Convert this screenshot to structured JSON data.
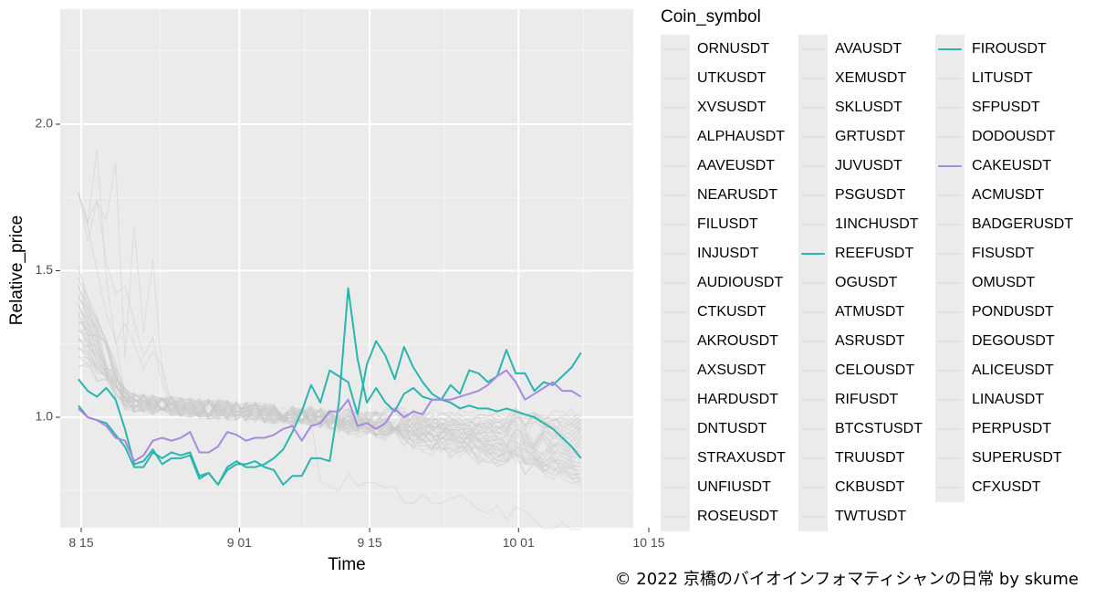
{
  "chart_data": {
    "type": "line",
    "xlabel": "Time",
    "ylabel": "Relative_price",
    "x_ticks": [
      "8 15",
      "9 01",
      "9 15",
      "10 01",
      "10 15"
    ],
    "y_ticks": [
      "1.0",
      "1.5",
      "2.0"
    ],
    "ylim": [
      0.65,
      2.4
    ],
    "grid": true,
    "legend_title": "Coin_symbol",
    "legend_placement": "right",
    "legend_columns": [
      [
        "ORNUSDT",
        "UTKUSDT",
        "XVSUSDT",
        "ALPHAUSDT",
        "AAVEUSDT",
        "NEARUSDT",
        "FILUSDT",
        "INJUSDT",
        "AUDIOUSDT",
        "CTKUSDT",
        "AKROUSDT",
        "AXSUSDT",
        "HARDUSDT",
        "DNTUSDT",
        "STRAXUSDT",
        "UNFIUSDT",
        "ROSEUSDT"
      ],
      [
        "AVAUSDT",
        "XEMUSDT",
        "SKLUSDT",
        "GRTUSDT",
        "JUVUSDT",
        "PSGUSDT",
        "1INCHUSDT",
        "REEFUSDT",
        "OGUSDT",
        "ATMUSDT",
        "ASRUSDT",
        "CELOUSDT",
        "RIFUSDT",
        "BTCSTUSDT",
        "TRUUSDT",
        "CKBUSDT",
        "TWTUSDT"
      ],
      [
        "FIROUSDT",
        "LITUSDT",
        "SFPUSDT",
        "DODOUSDT",
        "CAKEUSDT",
        "ACMUSDT",
        "BADGERUSDT",
        "FISUSDT",
        "OMUSDT",
        "PONDUSDT",
        "DEGOUSDT",
        "ALICEUSDT",
        "LINAUSDT",
        "PERPUSDT",
        "SUPERUSDT",
        "CFXUSDT"
      ]
    ],
    "colors": {
      "highlight_teal": "#2ab5ad",
      "highlight_purple": "#a889e0",
      "background_line": "#c9c9c9",
      "panel": "#ebebeb"
    },
    "series": [
      {
        "name": "FIROUSDT",
        "color": "#2ab5ad",
        "highlight": true,
        "x": [
          14.7,
          15.7,
          16.7,
          17.7,
          18.7,
          19.7,
          20.7,
          21.7,
          22.7,
          23.7,
          24.7,
          25.7,
          26.7,
          27.7,
          28.7,
          29.7,
          30.7,
          31.7,
          32.7,
          33.7,
          34.7,
          35.7,
          36.7,
          37.7,
          38.7,
          39.7,
          40.7,
          41.7,
          42.7,
          43.7,
          44.7,
          45.7,
          46.7,
          47.7,
          48.7,
          49.7,
          50.7,
          51.7,
          52.7,
          53.7,
          54.7,
          55.7,
          56.7,
          57.7,
          58.7,
          59.7,
          60.7,
          61.7,
          62.7,
          63.7,
          64.7,
          65.7,
          66.7,
          67.7,
          68.7
        ],
        "y": [
          1.13,
          1.09,
          1.07,
          1.1,
          1.06,
          0.96,
          0.84,
          0.85,
          0.89,
          0.84,
          0.86,
          0.86,
          0.87,
          0.79,
          0.81,
          0.77,
          0.83,
          0.85,
          0.83,
          0.83,
          0.84,
          0.86,
          0.89,
          0.95,
          1.02,
          1.11,
          1.05,
          1.16,
          1.14,
          1.12,
          1.01,
          1.18,
          1.26,
          1.21,
          1.13,
          1.24,
          1.17,
          1.12,
          1.08,
          1.06,
          1.11,
          1.08,
          1.16,
          1.15,
          1.12,
          1.14,
          1.23,
          1.15,
          1.15,
          1.09,
          1.12,
          1.11,
          1.14,
          1.17,
          1.22
        ]
      },
      {
        "name": "REEFUSDT",
        "color": "#2ab5ad",
        "highlight": true,
        "x": [
          14.7,
          15.7,
          16.7,
          17.7,
          18.7,
          19.7,
          20.7,
          21.7,
          22.7,
          23.7,
          24.7,
          25.7,
          26.7,
          27.7,
          28.7,
          29.7,
          30.7,
          31.7,
          32.7,
          33.7,
          34.7,
          35.7,
          36.7,
          37.7,
          38.7,
          39.7,
          40.7,
          41.7,
          42.7,
          43.7,
          44.7,
          45.7,
          46.7,
          47.7,
          48.7,
          49.7,
          50.7,
          51.7,
          52.7,
          53.7,
          54.7,
          55.7,
          56.7,
          57.7,
          58.7,
          59.7,
          60.7,
          61.7,
          62.7,
          63.7,
          64.7,
          65.7,
          66.7,
          67.7,
          68.7
        ],
        "y": [
          1.04,
          1.0,
          0.99,
          0.98,
          0.94,
          0.9,
          0.83,
          0.83,
          0.88,
          0.86,
          0.88,
          0.87,
          0.88,
          0.8,
          0.81,
          0.77,
          0.82,
          0.84,
          0.84,
          0.85,
          0.83,
          0.82,
          0.77,
          0.8,
          0.8,
          0.86,
          0.86,
          0.85,
          1.05,
          1.44,
          1.2,
          1.05,
          1.1,
          1.05,
          1.02,
          1.08,
          1.1,
          1.07,
          1.06,
          1.06,
          1.05,
          1.03,
          1.04,
          1.03,
          1.03,
          1.02,
          1.03,
          1.02,
          1.01,
          1.0,
          0.98,
          0.96,
          0.93,
          0.9,
          0.86
        ]
      },
      {
        "name": "CAKEUSDT",
        "color": "#a889e0",
        "highlight": true,
        "x": [
          14.7,
          15.7,
          16.7,
          17.7,
          18.7,
          19.7,
          20.7,
          21.7,
          22.7,
          23.7,
          24.7,
          25.7,
          26.7,
          27.7,
          28.7,
          29.7,
          30.7,
          31.7,
          32.7,
          33.7,
          34.7,
          35.7,
          36.7,
          37.7,
          38.7,
          39.7,
          40.7,
          41.7,
          42.7,
          43.7,
          44.7,
          45.7,
          46.7,
          47.7,
          48.7,
          49.7,
          50.7,
          51.7,
          52.7,
          53.7,
          54.7,
          55.7,
          56.7,
          57.7,
          58.7,
          59.7,
          60.7,
          61.7,
          62.7,
          63.7,
          64.7,
          65.7,
          66.7,
          67.7,
          68.7
        ],
        "y": [
          1.03,
          1.0,
          0.99,
          0.97,
          0.93,
          0.92,
          0.85,
          0.87,
          0.92,
          0.93,
          0.92,
          0.93,
          0.95,
          0.88,
          0.88,
          0.9,
          0.95,
          0.94,
          0.92,
          0.93,
          0.93,
          0.94,
          0.96,
          0.97,
          0.92,
          0.97,
          0.98,
          1.02,
          1.02,
          1.06,
          0.97,
          0.98,
          0.96,
          0.98,
          1.03,
          1.0,
          1.02,
          1.01,
          1.06,
          1.06,
          1.06,
          1.07,
          1.08,
          1.09,
          1.11,
          1.14,
          1.16,
          1.12,
          1.06,
          1.08,
          1.1,
          1.12,
          1.09,
          1.09,
          1.07
        ]
      }
    ]
  },
  "credit": "© 2022 京橋のバイオインフォマティシャンの日常 by skume"
}
